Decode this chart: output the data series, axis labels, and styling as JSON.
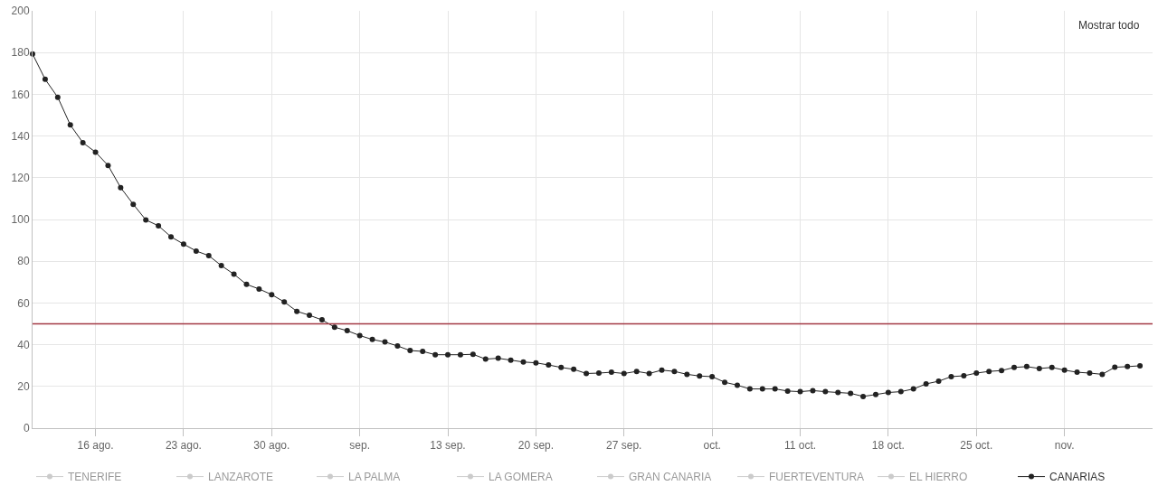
{
  "chart_data": {
    "type": "line",
    "marker": "circle",
    "line_style": "solid",
    "grid": true,
    "legend": "bottom",
    "x": [
      "--08-11",
      "--08-12",
      "--08-13",
      "--08-14",
      "--08-15",
      "--08-16",
      "--08-17",
      "--08-18",
      "--08-19",
      "--08-20",
      "--08-21",
      "--08-22",
      "--08-23",
      "--08-24",
      "--08-25",
      "--08-26",
      "--08-27",
      "--08-28",
      "--08-29",
      "--08-30",
      "--08-31",
      "--09-01",
      "--09-02",
      "--09-03",
      "--09-04",
      "--09-05",
      "--09-06",
      "--09-07",
      "--09-08",
      "--09-09",
      "--09-10",
      "--09-11",
      "--09-12",
      "--09-13",
      "--09-14",
      "--09-15",
      "--09-16",
      "--09-17",
      "--09-18",
      "--09-19",
      "--09-20",
      "--09-21",
      "--09-22",
      "--09-23",
      "--09-24",
      "--09-25",
      "--09-26",
      "--09-27",
      "--09-28",
      "--09-29",
      "--09-30",
      "--10-01",
      "--10-02",
      "--10-03",
      "--10-04",
      "--10-05",
      "--10-06",
      "--10-07",
      "--10-08",
      "--10-09",
      "--10-10",
      "--10-11",
      "--10-12",
      "--10-13",
      "--10-14",
      "--10-15",
      "--10-16",
      "--10-17",
      "--10-18",
      "--10-19",
      "--10-20",
      "--10-21",
      "--10-22",
      "--10-23",
      "--10-24",
      "--10-25",
      "--10-26",
      "--10-27",
      "--10-28",
      "--10-29",
      "--10-30",
      "--10-31",
      "--11-01",
      "--11-02",
      "--11-03",
      "--11-04",
      "--11-05",
      "--11-06",
      "--11-07"
    ],
    "series": [
      {
        "name": "TENERIFE",
        "color": "#999999",
        "values": [
          null,
          null,
          null,
          null,
          null,
          null,
          null,
          null,
          null,
          null,
          null,
          null,
          null,
          null,
          null,
          null,
          null,
          null,
          null,
          null,
          null,
          null,
          null,
          null,
          null,
          null,
          null,
          null,
          null,
          null,
          null,
          null,
          null,
          null,
          null,
          null,
          null,
          null,
          null,
          null,
          null,
          null,
          null,
          null,
          null,
          null,
          null,
          null,
          null,
          null,
          null,
          null,
          null,
          null,
          null,
          null,
          null,
          null,
          null,
          null,
          null,
          null,
          null,
          null,
          null,
          null,
          null,
          null,
          null,
          null,
          null,
          null,
          null,
          null,
          null,
          null,
          null,
          null,
          null,
          null,
          null,
          null,
          null,
          null,
          null,
          null,
          null,
          null,
          null
        ]
      },
      {
        "name": "LANZAROTE",
        "color": "#999999",
        "values": [
          null,
          null,
          null,
          null,
          null,
          null,
          null,
          null,
          null,
          null,
          null,
          null,
          null,
          null,
          null,
          null,
          null,
          null,
          null,
          null,
          null,
          null,
          null,
          null,
          null,
          null,
          null,
          null,
          null,
          null,
          null,
          null,
          null,
          null,
          null,
          null,
          null,
          null,
          null,
          null,
          null,
          null,
          null,
          null,
          null,
          null,
          null,
          null,
          null,
          null,
          null,
          null,
          null,
          null,
          null,
          null,
          null,
          null,
          null,
          null,
          null,
          null,
          null,
          null,
          null,
          null,
          null,
          null,
          null,
          null,
          null,
          null,
          null,
          null,
          null,
          null,
          null,
          null,
          null,
          null,
          null,
          null,
          null,
          null,
          null,
          null,
          null,
          null,
          null
        ]
      },
      {
        "name": "LA PALMA",
        "color": "#999999",
        "values": [
          null,
          null,
          null,
          null,
          null,
          null,
          null,
          null,
          null,
          null,
          null,
          null,
          null,
          null,
          null,
          null,
          null,
          null,
          null,
          null,
          null,
          null,
          null,
          null,
          null,
          null,
          null,
          null,
          null,
          null,
          null,
          null,
          null,
          null,
          null,
          null,
          null,
          null,
          null,
          null,
          null,
          null,
          null,
          null,
          null,
          null,
          null,
          null,
          null,
          null,
          null,
          null,
          null,
          null,
          null,
          null,
          null,
          null,
          null,
          null,
          null,
          null,
          null,
          null,
          null,
          null,
          null,
          null,
          null,
          null,
          null,
          null,
          null,
          null,
          null,
          null,
          null,
          null,
          null,
          null,
          null,
          null,
          null,
          null,
          null,
          null,
          null,
          null,
          null
        ]
      },
      {
        "name": "LA GOMERA",
        "color": "#999999",
        "values": [
          null,
          null,
          null,
          null,
          null,
          null,
          null,
          null,
          null,
          null,
          null,
          null,
          null,
          null,
          null,
          null,
          null,
          null,
          null,
          null,
          null,
          null,
          null,
          null,
          null,
          null,
          null,
          null,
          null,
          null,
          null,
          null,
          null,
          null,
          null,
          null,
          null,
          null,
          null,
          null,
          null,
          null,
          null,
          null,
          null,
          null,
          null,
          null,
          null,
          null,
          null,
          null,
          null,
          null,
          null,
          null,
          null,
          null,
          null,
          null,
          null,
          null,
          null,
          null,
          null,
          null,
          null,
          null,
          null,
          null,
          null,
          null,
          null,
          null,
          null,
          null,
          null,
          null,
          null,
          null,
          null,
          null,
          null,
          null,
          null,
          null,
          null,
          null,
          null
        ]
      },
      {
        "name": "GRAN CANARIA",
        "color": "#999999",
        "values": [
          null,
          null,
          null,
          null,
          null,
          null,
          null,
          null,
          null,
          null,
          null,
          null,
          null,
          null,
          null,
          null,
          null,
          null,
          null,
          null,
          null,
          null,
          null,
          null,
          null,
          null,
          null,
          null,
          null,
          null,
          null,
          null,
          null,
          null,
          null,
          null,
          null,
          null,
          null,
          null,
          null,
          null,
          null,
          null,
          null,
          null,
          null,
          null,
          null,
          null,
          null,
          null,
          null,
          null,
          null,
          null,
          null,
          null,
          null,
          null,
          null,
          null,
          null,
          null,
          null,
          null,
          null,
          null,
          null,
          null,
          null,
          null,
          null,
          null,
          null,
          null,
          null,
          null,
          null,
          null,
          null,
          null,
          null,
          null,
          null,
          null,
          null,
          null,
          null
        ]
      },
      {
        "name": "FUERTEVENTURA",
        "color": "#999999",
        "values": [
          null,
          null,
          null,
          null,
          null,
          null,
          null,
          null,
          null,
          null,
          null,
          null,
          null,
          null,
          null,
          null,
          null,
          null,
          null,
          null,
          null,
          null,
          null,
          null,
          null,
          null,
          null,
          null,
          null,
          null,
          null,
          null,
          null,
          null,
          null,
          null,
          null,
          null,
          null,
          null,
          null,
          null,
          null,
          null,
          null,
          null,
          null,
          null,
          null,
          null,
          null,
          null,
          null,
          null,
          null,
          null,
          null,
          null,
          null,
          null,
          null,
          null,
          null,
          null,
          null,
          null,
          null,
          null,
          null,
          null,
          null,
          null,
          null,
          null,
          null,
          null,
          null,
          null,
          null,
          null,
          null,
          null,
          null,
          null,
          null,
          null,
          null,
          null,
          null
        ]
      },
      {
        "name": "EL HIERRO",
        "color": "#999999",
        "values": [
          null,
          null,
          null,
          null,
          null,
          null,
          null,
          null,
          null,
          null,
          null,
          null,
          null,
          null,
          null,
          null,
          null,
          null,
          null,
          null,
          null,
          null,
          null,
          null,
          null,
          null,
          null,
          null,
          null,
          null,
          null,
          null,
          null,
          null,
          null,
          null,
          null,
          null,
          null,
          null,
          null,
          null,
          null,
          null,
          null,
          null,
          null,
          null,
          null,
          null,
          null,
          null,
          null,
          null,
          null,
          null,
          null,
          null,
          null,
          null,
          null,
          null,
          null,
          null,
          null,
          null,
          null,
          null,
          null,
          null,
          null,
          null,
          null,
          null,
          null,
          null,
          null,
          null,
          null,
          null,
          null,
          null,
          null,
          null,
          null,
          null,
          null,
          null,
          null
        ]
      },
      {
        "name": "CANARIAS",
        "color": "#222222",
        "values": [
          179.3,
          167.2,
          158.6,
          145.3,
          136.8,
          132.3,
          125.9,
          115.3,
          107.3,
          99.8,
          97.0,
          91.7,
          88.2,
          84.9,
          82.7,
          77.9,
          73.8,
          68.9,
          66.7,
          64.0,
          60.5,
          56.0,
          54.1,
          51.9,
          48.4,
          46.7,
          44.4,
          42.5,
          41.3,
          39.4,
          37.2,
          36.8,
          35.2,
          35.2,
          35.2,
          35.4,
          33.1,
          33.5,
          32.6,
          31.7,
          31.3,
          30.3,
          29.1,
          28.2,
          26.2,
          26.4,
          26.8,
          26.2,
          27.2,
          26.2,
          27.8,
          27.2,
          25.8,
          25.0,
          24.7,
          22.0,
          20.6,
          18.8,
          18.8,
          18.8,
          17.8,
          17.5,
          18.0,
          17.5,
          17.1,
          16.7,
          15.2,
          16.1,
          17.1,
          17.5,
          18.8,
          21.2,
          22.5,
          24.7,
          25.1,
          26.4,
          27.2,
          27.6,
          29.1,
          29.5,
          28.6,
          29.1,
          27.8,
          26.8,
          26.4,
          25.8,
          29.2,
          29.5,
          29.9
        ]
      }
    ],
    "xlim": [
      "--08-11",
      "--11-08"
    ],
    "xticks": [
      {
        "value": "--08-16",
        "label": "16 ago."
      },
      {
        "value": "--08-23",
        "label": "23 ago."
      },
      {
        "value": "--08-30",
        "label": "30 ago."
      },
      {
        "value": "--09-06",
        "label": "sep."
      },
      {
        "value": "--09-13",
        "label": "13 sep."
      },
      {
        "value": "--09-20",
        "label": "20 sep."
      },
      {
        "value": "--09-27",
        "label": "27 sep."
      },
      {
        "value": "--10-04",
        "label": "oct."
      },
      {
        "value": "--10-11",
        "label": "11 oct."
      },
      {
        "value": "--10-18",
        "label": "18 oct."
      },
      {
        "value": "--10-25",
        "label": "25 oct."
      },
      {
        "value": "--11-01",
        "label": "nov."
      }
    ],
    "ylim": [
      0,
      200
    ],
    "yticks": [
      0,
      20,
      40,
      60,
      80,
      100,
      120,
      140,
      160,
      180,
      200
    ],
    "ref_lines": [
      {
        "axis": "y",
        "value": 50,
        "color": "#a33a45"
      }
    ],
    "annotations": [
      "Mostrar todo"
    ]
  }
}
